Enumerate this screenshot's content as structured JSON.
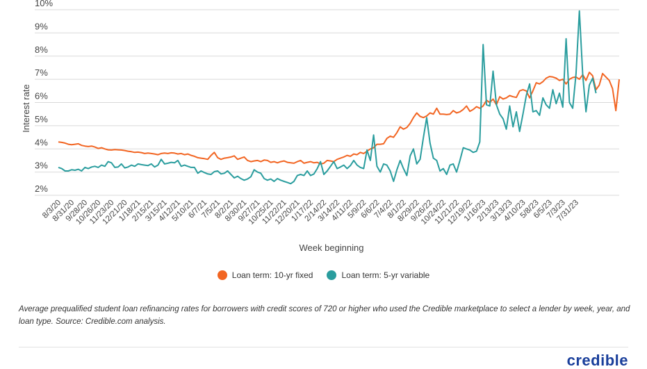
{
  "chart_data": {
    "type": "line",
    "title": "",
    "xlabel": "Week beginning",
    "ylabel": "Interest rate",
    "ylim": [
      2,
      10
    ],
    "y_ticks": [
      "2%",
      "3%",
      "4%",
      "5%",
      "6%",
      "7%",
      "8%",
      "9%",
      "10%"
    ],
    "grid": "horizontal",
    "legend_position": "bottom",
    "x_ticks": [
      "8/3/20",
      "8/31/20",
      "9/28/20",
      "10/26/20",
      "11/23/20",
      "12/21/20",
      "1/18/21",
      "2/15/21",
      "3/15/21",
      "4/12/21",
      "5/10/21",
      "6/7/21",
      "7/5/21",
      "8/2/21",
      "8/30/21",
      "9/27/21",
      "10/25/21",
      "11/22/21",
      "12/20/21",
      "1/17/22",
      "2/14/22",
      "3/14/22",
      "4/11/22",
      "5/9/22",
      "6/6/22",
      "7/4/22",
      "8/1/22",
      "8/29/22",
      "9/26/22",
      "10/24/22",
      "11/21/22",
      "12/19/22",
      "1/16/23",
      "2/13/23",
      "3/13/23",
      "4/10/23",
      "5/8/23",
      "6/5/23",
      "7/3/23",
      "7/31/23"
    ],
    "x_start": "8/3/20",
    "x_step_days": 7,
    "series": [
      {
        "name": "Loan term: 10-yr fixed",
        "color": "#f26522",
        "values": [
          4.3,
          4.28,
          4.25,
          4.2,
          4.18,
          4.2,
          4.22,
          4.15,
          4.12,
          4.1,
          4.12,
          4.08,
          4.02,
          4.05,
          4.0,
          3.96,
          3.95,
          3.97,
          3.96,
          3.95,
          3.93,
          3.9,
          3.88,
          3.85,
          3.86,
          3.84,
          3.8,
          3.82,
          3.8,
          3.78,
          3.75,
          3.8,
          3.82,
          3.8,
          3.83,
          3.82,
          3.78,
          3.8,
          3.75,
          3.78,
          3.72,
          3.68,
          3.62,
          3.6,
          3.58,
          3.55,
          3.72,
          3.85,
          3.62,
          3.55,
          3.6,
          3.62,
          3.65,
          3.7,
          3.55,
          3.6,
          3.65,
          3.5,
          3.45,
          3.48,
          3.5,
          3.45,
          3.52,
          3.5,
          3.42,
          3.45,
          3.4,
          3.45,
          3.48,
          3.42,
          3.4,
          3.38,
          3.45,
          3.5,
          3.38,
          3.42,
          3.45,
          3.4,
          3.42,
          3.35,
          3.38,
          3.5,
          3.48,
          3.45,
          3.55,
          3.6,
          3.65,
          3.72,
          3.68,
          3.78,
          3.75,
          3.85,
          3.8,
          3.9,
          4.0,
          4.05,
          4.2,
          4.2,
          4.22,
          4.45,
          4.55,
          4.5,
          4.7,
          4.95,
          4.85,
          4.92,
          5.1,
          5.35,
          5.55,
          5.4,
          5.35,
          5.42,
          5.55,
          5.5,
          5.75,
          5.5,
          5.5,
          5.48,
          5.5,
          5.65,
          5.55,
          5.6,
          5.7,
          5.85,
          5.62,
          5.7,
          5.82,
          5.75,
          5.85,
          6.1,
          6.0,
          6.15,
          5.9,
          6.25,
          6.15,
          6.2,
          6.3,
          6.25,
          6.22,
          6.5,
          6.55,
          6.5,
          6.2,
          6.5,
          6.85,
          6.8,
          6.9,
          7.05,
          7.12,
          7.1,
          7.05,
          6.95,
          7.0,
          6.8,
          7.0,
          7.08,
          7.1,
          7.0,
          7.2,
          6.95,
          7.3,
          7.15,
          6.55,
          6.75,
          7.25,
          7.1,
          6.95,
          6.6,
          5.65,
          7.0
        ]
      },
      {
        "name": "Loan term: 5-yr variable",
        "color": "#2a9d9e",
        "values": [
          3.2,
          3.15,
          3.05,
          3.05,
          3.1,
          3.08,
          3.12,
          3.05,
          3.2,
          3.15,
          3.22,
          3.25,
          3.2,
          3.3,
          3.25,
          3.45,
          3.4,
          3.2,
          3.22,
          3.35,
          3.18,
          3.22,
          3.3,
          3.25,
          3.35,
          3.32,
          3.3,
          3.28,
          3.35,
          3.22,
          3.3,
          3.55,
          3.35,
          3.38,
          3.42,
          3.4,
          3.5,
          3.25,
          3.3,
          3.25,
          3.2,
          3.2,
          2.95,
          3.05,
          2.98,
          2.92,
          2.9,
          3.02,
          3.05,
          2.92,
          2.95,
          3.05,
          2.9,
          2.75,
          2.82,
          2.72,
          2.65,
          2.7,
          2.8,
          3.1,
          3.0,
          2.95,
          2.72,
          2.65,
          2.7,
          2.6,
          2.72,
          2.65,
          2.6,
          2.55,
          2.5,
          2.6,
          2.85,
          2.9,
          2.85,
          3.05,
          2.85,
          2.92,
          3.15,
          3.45,
          2.9,
          3.05,
          3.25,
          3.45,
          3.15,
          3.22,
          3.3,
          3.15,
          3.28,
          3.5,
          3.3,
          3.2,
          3.15,
          3.95,
          3.5,
          4.6,
          3.25,
          3.0,
          3.35,
          3.3,
          3.05,
          2.6,
          3.1,
          3.5,
          3.15,
          2.85,
          3.7,
          4.0,
          3.35,
          3.55,
          4.5,
          5.35,
          4.25,
          3.6,
          3.5,
          3.05,
          3.15,
          2.9,
          3.3,
          3.35,
          3.0,
          3.5,
          4.05,
          4.0,
          3.95,
          3.85,
          3.9,
          4.3,
          8.5,
          5.9,
          5.85,
          7.35,
          5.9,
          5.5,
          5.3,
          4.85,
          5.85,
          4.95,
          5.6,
          4.75,
          5.5,
          6.3,
          6.8,
          5.6,
          5.65,
          5.45,
          6.2,
          5.9,
          5.75,
          6.55,
          5.95,
          6.4,
          5.8,
          8.75,
          6.0,
          5.75,
          7.25,
          9.95,
          7.2,
          5.6,
          6.75,
          7.05,
          6.4
        ]
      }
    ]
  },
  "caption": "Average prequalified student loan refinancing rates for borrowers with credit scores of 720 or higher who used the Credible marketplace to select a lender by week, year, and loan type. Source: Credible.com analysis.",
  "logo_text": "credible"
}
